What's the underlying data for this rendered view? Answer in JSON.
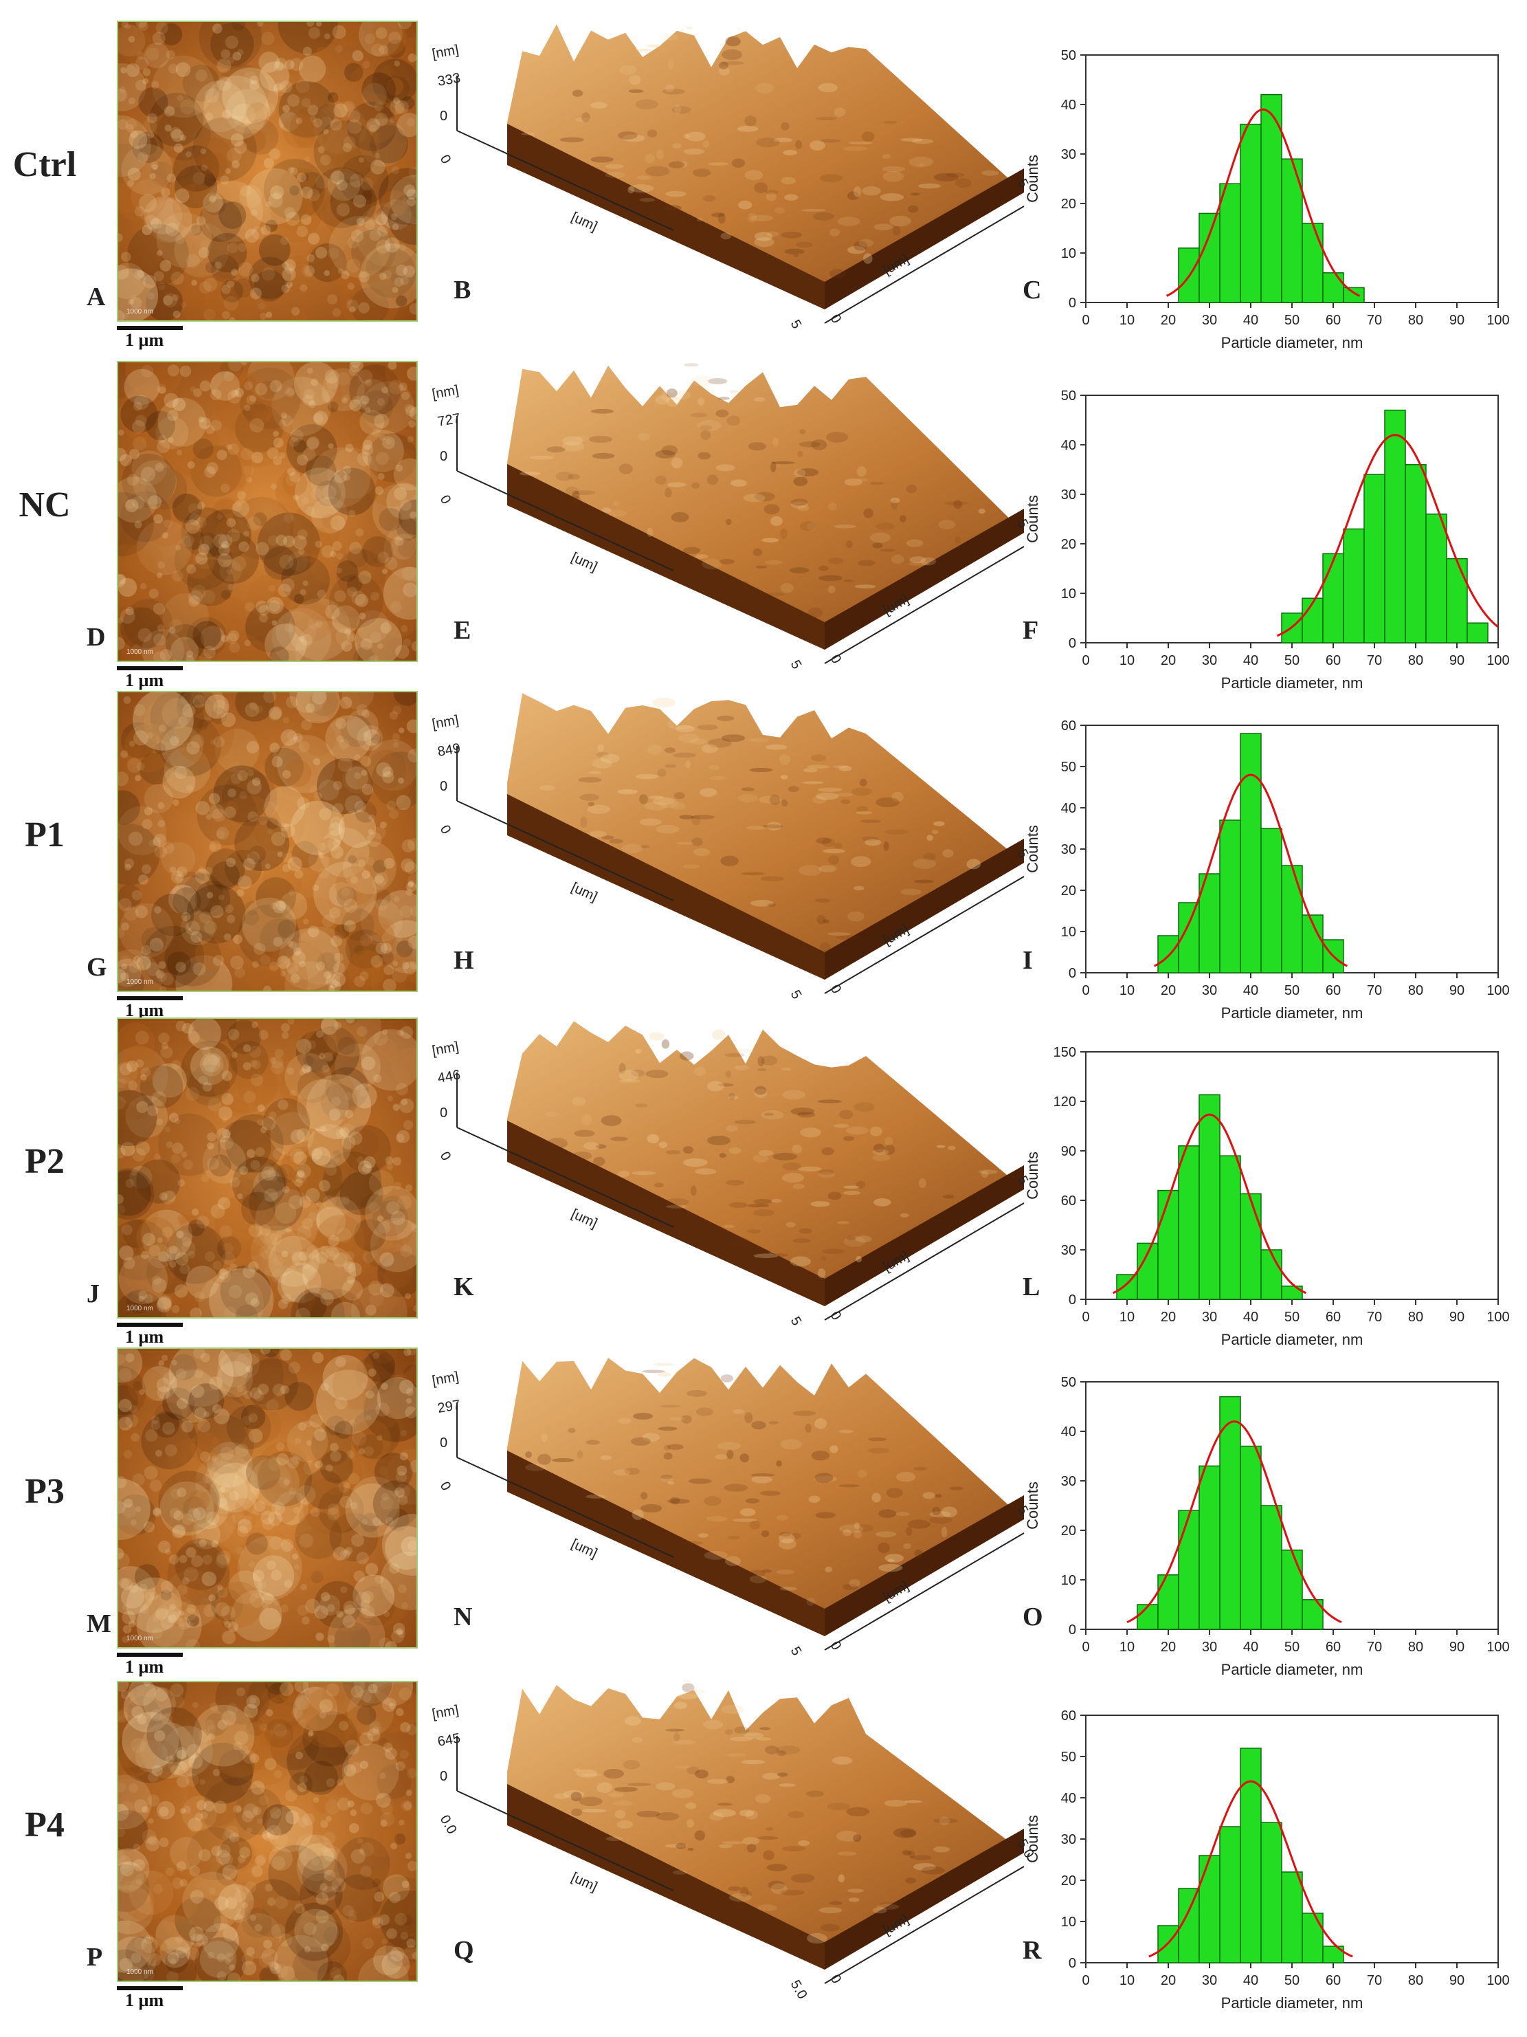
{
  "scale_bar_label": "1 µm",
  "afm_scan_label": "1000 nm",
  "panels": [
    {
      "row": "Ctrl",
      "afm": "A",
      "topo": "B",
      "hist": "C",
      "z_max": "333",
      "seed": 11
    },
    {
      "row": "NC",
      "afm": "D",
      "topo": "E",
      "hist": "F",
      "z_max": "727",
      "seed": 23
    },
    {
      "row": "P1",
      "afm": "G",
      "topo": "H",
      "hist": "I",
      "z_max": "849",
      "seed": 37
    },
    {
      "row": "P2",
      "afm": "J",
      "topo": "K",
      "hist": "L",
      "z_max": "446",
      "seed": 41
    },
    {
      "row": "P3",
      "afm": "M",
      "topo": "N",
      "hist": "O",
      "z_max": "297",
      "seed": 53
    },
    {
      "row": "P4",
      "afm": "P",
      "topo": "Q",
      "hist": "R",
      "z_max": "645",
      "seed": 67
    }
  ],
  "topo_axes": {
    "unit_z": "[nm]",
    "unit_xy": "[um]",
    "zero": "0",
    "max_xy": "5"
  },
  "topo_axes_q": {
    "zero_x": "0.0",
    "max_xy": "5.0"
  },
  "colors": {
    "bar": "#22dd22",
    "bar_edge": "#0a6f0a",
    "fit": "#dd1111",
    "afm_dark": "#3a1a05",
    "afm_mid": "#b5651d",
    "afm_light": "#f7dfb0"
  },
  "chart_data": [
    {
      "id": "C",
      "type": "bar",
      "xlabel": "Particle diameter, nm",
      "ylabel": "Counts",
      "xlim": [
        0,
        100
      ],
      "ylim": [
        0,
        50
      ],
      "xticks": [
        0,
        10,
        20,
        30,
        40,
        50,
        60,
        70,
        80,
        90,
        100
      ],
      "yticks": [
        0,
        10,
        20,
        30,
        40,
        50
      ],
      "bin_width": 5,
      "x": [
        25,
        30,
        35,
        40,
        45,
        50,
        55,
        60,
        65
      ],
      "values": [
        11,
        18,
        24,
        36,
        42,
        29,
        16,
        6,
        3
      ],
      "fit": {
        "mean": 43,
        "sd": 9,
        "peak": 39
      }
    },
    {
      "id": "F",
      "type": "bar",
      "xlabel": "Particle diameter, nm",
      "ylabel": "Counts",
      "xlim": [
        0,
        100
      ],
      "ylim": [
        0,
        50
      ],
      "xticks": [
        0,
        10,
        20,
        30,
        40,
        50,
        60,
        70,
        80,
        90,
        100
      ],
      "yticks": [
        0,
        10,
        20,
        30,
        40,
        50
      ],
      "bin_width": 5,
      "x": [
        50,
        55,
        60,
        65,
        70,
        75,
        80,
        85,
        90,
        95
      ],
      "values": [
        6,
        9,
        18,
        23,
        34,
        47,
        36,
        26,
        17,
        4
      ],
      "fit": {
        "mean": 75,
        "sd": 11,
        "peak": 42
      }
    },
    {
      "id": "I",
      "type": "bar",
      "xlabel": "Particle diameter, nm",
      "ylabel": "Counts",
      "xlim": [
        0,
        100
      ],
      "ylim": [
        0,
        60
      ],
      "xticks": [
        0,
        10,
        20,
        30,
        40,
        50,
        60,
        70,
        80,
        90,
        100
      ],
      "yticks": [
        0,
        10,
        20,
        30,
        40,
        50,
        60
      ],
      "bin_width": 5,
      "x": [
        20,
        25,
        30,
        35,
        40,
        45,
        50,
        55,
        60
      ],
      "values": [
        9,
        17,
        24,
        37,
        58,
        35,
        26,
        14,
        8
      ],
      "fit": {
        "mean": 40,
        "sd": 9,
        "peak": 48
      }
    },
    {
      "id": "L",
      "type": "bar",
      "xlabel": "Particle diameter, nm",
      "ylabel": "Counts",
      "xlim": [
        0,
        100
      ],
      "ylim": [
        0,
        150
      ],
      "xticks": [
        0,
        10,
        20,
        30,
        40,
        50,
        60,
        70,
        80,
        90,
        100
      ],
      "yticks": [
        0,
        30,
        60,
        90,
        120,
        150
      ],
      "bin_width": 5,
      "x": [
        10,
        15,
        20,
        25,
        30,
        35,
        40,
        45,
        50
      ],
      "values": [
        15,
        34,
        66,
        93,
        124,
        87,
        64,
        30,
        8
      ],
      "fit": {
        "mean": 30,
        "sd": 9,
        "peak": 112
      }
    },
    {
      "id": "O",
      "type": "bar",
      "xlabel": "Particle diameter, nm",
      "ylabel": "Counts",
      "xlim": [
        0,
        100
      ],
      "ylim": [
        0,
        50
      ],
      "xticks": [
        0,
        10,
        20,
        30,
        40,
        50,
        60,
        70,
        80,
        90,
        100
      ],
      "yticks": [
        0,
        10,
        20,
        30,
        40,
        50
      ],
      "bin_width": 5,
      "x": [
        15,
        20,
        25,
        30,
        35,
        40,
        45,
        50,
        55
      ],
      "values": [
        5,
        11,
        24,
        33,
        47,
        37,
        25,
        16,
        6
      ],
      "fit": {
        "mean": 36,
        "sd": 10,
        "peak": 42
      }
    },
    {
      "id": "R",
      "type": "bar",
      "xlabel": "Particle diameter, nm",
      "ylabel": "Counts",
      "xlim": [
        0,
        100
      ],
      "ylim": [
        0,
        60
      ],
      "xticks": [
        0,
        10,
        20,
        30,
        40,
        50,
        60,
        70,
        80,
        90,
        100
      ],
      "yticks": [
        0,
        10,
        20,
        30,
        40,
        50,
        60
      ],
      "bin_width": 5,
      "x": [
        20,
        25,
        30,
        35,
        40,
        45,
        50,
        55,
        60
      ],
      "values": [
        9,
        18,
        26,
        33,
        52,
        34,
        22,
        12,
        4
      ],
      "fit": {
        "mean": 40,
        "sd": 9.5,
        "peak": 44
      }
    }
  ]
}
